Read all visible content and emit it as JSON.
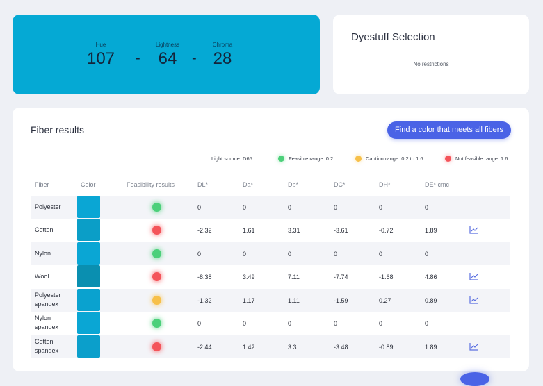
{
  "color_card": {
    "hue_label": "Hue",
    "hue_value": "107",
    "lightness_label": "Lightness",
    "lightness_value": "64",
    "chroma_label": "Chroma",
    "chroma_value": "28",
    "separator": "-"
  },
  "dyestuff": {
    "title": "Dyestuff Selection",
    "subtitle": "No restrictions"
  },
  "fiber_results": {
    "title": "Fiber results",
    "find_button": "Find a color that meets all fibers",
    "legend": {
      "light_source": "Light source: D65",
      "feasible": "Feasible range: 0.2",
      "caution": "Caution range: 0.2 to 1.6",
      "not_feasible": "Not feasible range: 1.6"
    },
    "status_colors": {
      "feasible": "#4cd07a",
      "caution": "#f7c04a",
      "not_feasible": "#f4545a"
    },
    "headers": [
      "Fiber",
      "Color",
      "Feasibility results",
      "DL*",
      "Da*",
      "Db*",
      "DC*",
      "DH*",
      "DE* cmc"
    ],
    "rows": [
      {
        "fiber_line1": "Polyester",
        "fiber_line2": "",
        "swatch": "#0aa6d4",
        "status": "feasible",
        "dl": "0",
        "da": "0",
        "db": "0",
        "dc": "0",
        "dh": "0",
        "de": "0",
        "trend": false
      },
      {
        "fiber_line1": "Cotton",
        "fiber_line2": "",
        "swatch": "#0b9ec7",
        "status": "not_feasible",
        "dl": "-2.32",
        "da": "1.61",
        "db": "3.31",
        "dc": "-3.61",
        "dh": "-0.72",
        "de": "1.89",
        "trend": true
      },
      {
        "fiber_line1": "Nylon",
        "fiber_line2": "",
        "swatch": "#0aa6d4",
        "status": "feasible",
        "dl": "0",
        "da": "0",
        "db": "0",
        "dc": "0",
        "dh": "0",
        "de": "0",
        "trend": false
      },
      {
        "fiber_line1": "Wool",
        "fiber_line2": "",
        "swatch": "#0a8fb0",
        "status": "not_feasible",
        "dl": "-8.38",
        "da": "3.49",
        "db": "7.11",
        "dc": "-7.74",
        "dh": "-1.68",
        "de": "4.86",
        "trend": true
      },
      {
        "fiber_line1": "Polyester",
        "fiber_line2": "spandex",
        "swatch": "#0aa2cf",
        "status": "caution",
        "dl": "-1.32",
        "da": "1.17",
        "db": "1.11",
        "dc": "-1.59",
        "dh": "0.27",
        "de": "0.89",
        "trend": true
      },
      {
        "fiber_line1": "Nylon",
        "fiber_line2": "spandex",
        "swatch": "#0aa6d4",
        "status": "feasible",
        "dl": "0",
        "da": "0",
        "db": "0",
        "dc": "0",
        "dh": "0",
        "de": "0",
        "trend": false
      },
      {
        "fiber_line1": "Cotton",
        "fiber_line2": "spandex",
        "swatch": "#0b9fcb",
        "status": "not_feasible",
        "dl": "-2.44",
        "da": "1.42",
        "db": "3.3",
        "dc": "-3.48",
        "dh": "-0.89",
        "de": "1.89",
        "trend": true
      }
    ]
  }
}
